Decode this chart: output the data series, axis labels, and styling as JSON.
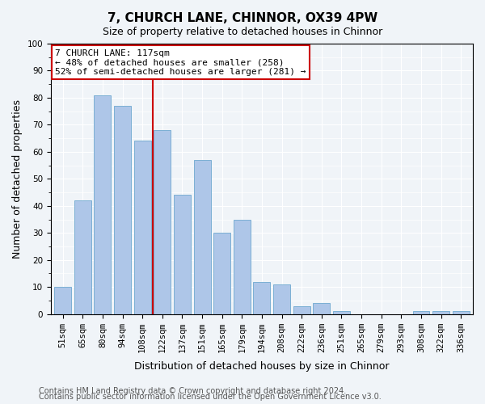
{
  "title": "7, CHURCH LANE, CHINNOR, OX39 4PW",
  "subtitle": "Size of property relative to detached houses in Chinnor",
  "xlabel": "Distribution of detached houses by size in Chinnor",
  "ylabel": "Number of detached properties",
  "categories": [
    "51sqm",
    "65sqm",
    "80sqm",
    "94sqm",
    "108sqm",
    "122sqm",
    "137sqm",
    "151sqm",
    "165sqm",
    "179sqm",
    "194sqm",
    "208sqm",
    "222sqm",
    "236sqm",
    "251sqm",
    "265sqm",
    "279sqm",
    "293sqm",
    "308sqm",
    "322sqm",
    "336sqm"
  ],
  "values": [
    10,
    42,
    81,
    77,
    64,
    68,
    44,
    57,
    30,
    35,
    12,
    11,
    3,
    4,
    1,
    0,
    0,
    0,
    1,
    1,
    1
  ],
  "bar_color": "#aec6e8",
  "bar_edge_color": "#7bafd4",
  "vline_x": 5,
  "vline_color": "#cc0000",
  "annotation_text": "7 CHURCH LANE: 117sqm\n← 48% of detached houses are smaller (258)\n52% of semi-detached houses are larger (281) →",
  "annotation_box_color": "#ffffff",
  "annotation_box_edge": "#cc0000",
  "ylim": [
    0,
    100
  ],
  "yticks": [
    0,
    10,
    20,
    30,
    40,
    50,
    60,
    70,
    80,
    90,
    100
  ],
  "footnote1": "Contains HM Land Registry data © Crown copyright and database right 2024.",
  "footnote2": "Contains public sector information licensed under the Open Government Licence v3.0.",
  "background_color": "#f0f4f8",
  "plot_bg_color": "#f0f4f8",
  "title_fontsize": 11,
  "subtitle_fontsize": 9,
  "xlabel_fontsize": 9,
  "ylabel_fontsize": 9,
  "tick_fontsize": 7.5,
  "footnote_fontsize": 7,
  "annotation_fontsize": 8
}
